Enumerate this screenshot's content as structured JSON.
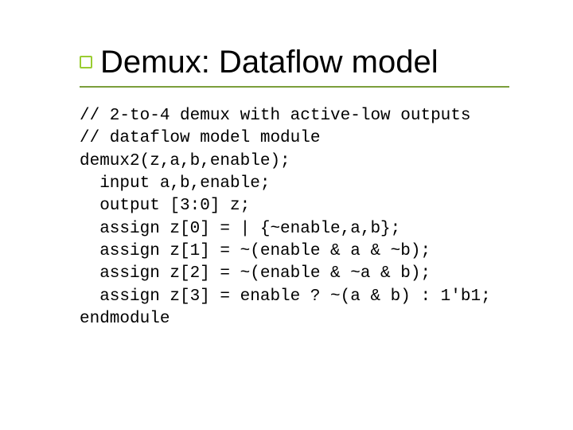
{
  "title": "Demux: Dataflow model",
  "bullet_color": "#9acd32",
  "rule_color": "#7b9e3b",
  "text_color": "#000000",
  "background_color": "#ffffff",
  "title_fontsize": 40,
  "code_fontsize": 21,
  "code_lines": [
    "// 2-to-4 demux with active-low outputs",
    "// dataflow model module",
    "demux2(z,a,b,enable);",
    "  input a,b,enable;",
    "  output [3:0] z;",
    "  assign z[0] = | {~enable,a,b};",
    "  assign z[1] = ~(enable & a & ~b);",
    "  assign z[2] = ~(enable & ~a & b);",
    "  assign z[3] = enable ? ~(a & b) : 1'b1;",
    "endmodule"
  ]
}
